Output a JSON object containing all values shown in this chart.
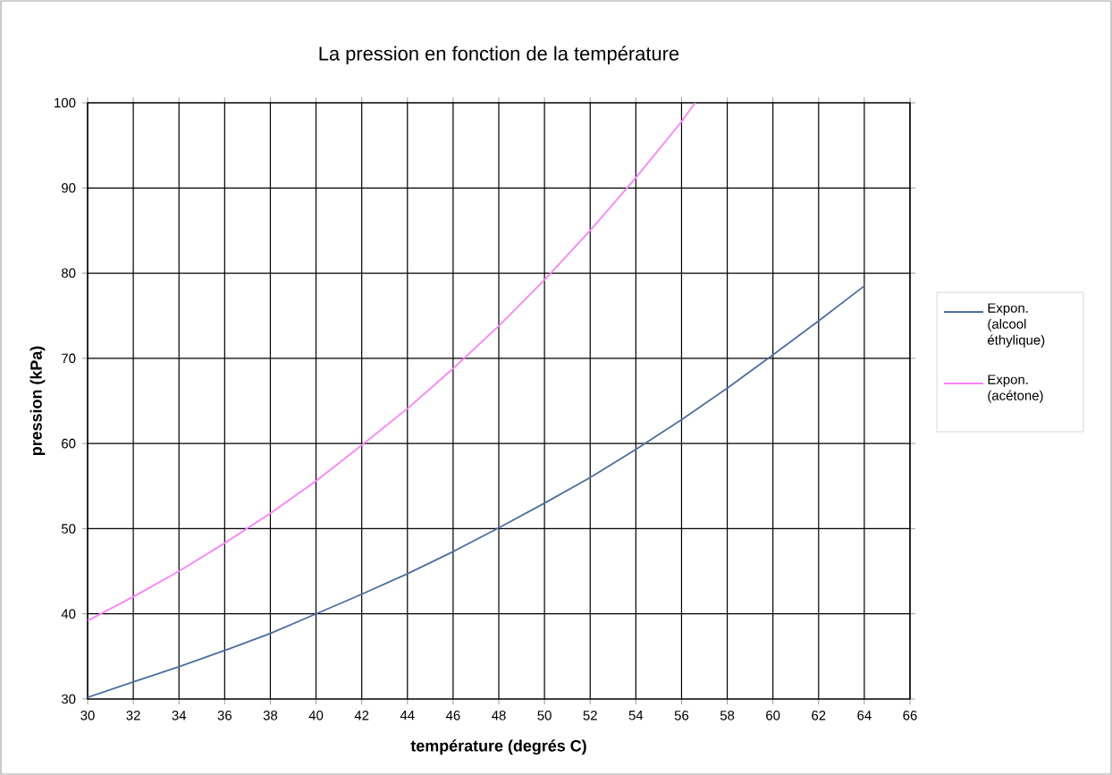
{
  "chart_data": {
    "type": "line",
    "title": "La pression en fonction de la température",
    "xlabel": "température (degrés C)",
    "ylabel": "pression (kPa)",
    "xlim": [
      30,
      66
    ],
    "ylim": [
      30,
      100
    ],
    "xticks": [
      30,
      32,
      34,
      36,
      38,
      40,
      42,
      44,
      46,
      48,
      50,
      52,
      54,
      56,
      58,
      60,
      62,
      64,
      66
    ],
    "yticks": [
      30,
      40,
      50,
      60,
      70,
      80,
      90,
      100
    ],
    "grid": true,
    "legend": "right",
    "marker": "none",
    "line_style": "solid",
    "series": [
      {
        "name": "Expon. (alcool éthylique)",
        "color": "#4a6fa0",
        "x": [
          30,
          32,
          34,
          36,
          38,
          40,
          42,
          44,
          46,
          48,
          50,
          52,
          54,
          56,
          58,
          60,
          62,
          64
        ],
        "values": [
          30.2,
          32,
          33.8,
          35.7,
          37.7,
          40,
          42.3,
          44.7,
          47.3,
          50.1,
          53,
          56,
          59.3,
          62.8,
          66.5,
          70.4,
          74.4,
          78.5
        ]
      },
      {
        "name": "Expon. (acétone)",
        "color": "#ff80ff",
        "x": [
          30,
          32,
          34,
          36,
          38,
          40,
          42,
          44,
          46,
          48,
          50,
          52,
          54,
          56,
          56.6
        ],
        "values": [
          39.2,
          42,
          45,
          48.3,
          51.8,
          55.6,
          59.8,
          64.1,
          68.8,
          73.8,
          79.2,
          85,
          91.2,
          97.8,
          100
        ]
      }
    ]
  }
}
